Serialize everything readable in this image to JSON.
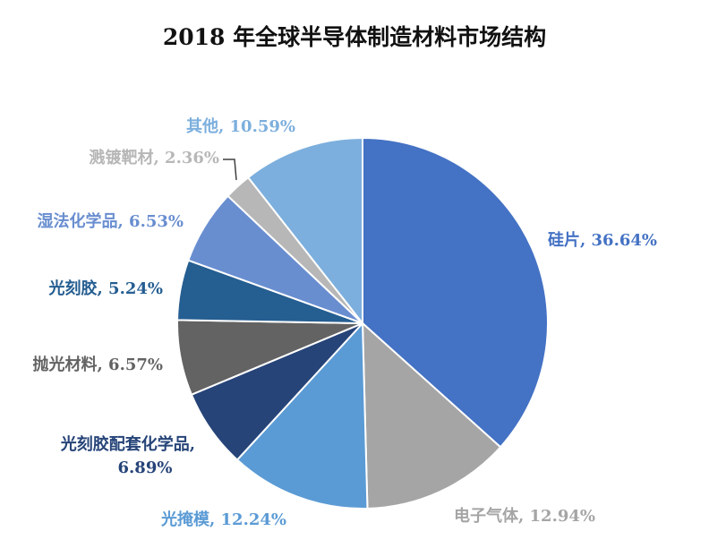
{
  "chart_data": {
    "type": "pie",
    "title": "2018 年全球半导体制造材料市场结构",
    "slices": [
      {
        "name": "硅片",
        "value": 36.64,
        "label": "36.64%",
        "color": "#4472C4",
        "label_color": "#4472C4"
      },
      {
        "name": "电子气体",
        "value": 12.94,
        "label": "12.94%",
        "color": "#A5A5A5",
        "label_color": "#A5A5A5"
      },
      {
        "name": "光掩模",
        "value": 12.24,
        "label": "12.24%",
        "color": "#5B9BD5",
        "label_color": "#5B9BD5"
      },
      {
        "name": "光刻胶配套化学品",
        "value": 6.89,
        "label": "6.89%",
        "color": "#264478",
        "label_color": "#264478"
      },
      {
        "name": "抛光材料",
        "value": 6.57,
        "label": "6.57%",
        "color": "#636363",
        "label_color": "#636363"
      },
      {
        "name": "光刻胶",
        "value": 5.24,
        "label": "5.24%",
        "color": "#255E91",
        "label_color": "#255E91"
      },
      {
        "name": "湿法化学品",
        "value": 6.53,
        "label": "6.53%",
        "color": "#698ED0",
        "label_color": "#698ED0"
      },
      {
        "name": "溅镀靶材",
        "value": 2.36,
        "label": "2.36%",
        "color": "#B7B7B7",
        "label_color": "#B7B7B7"
      },
      {
        "name": "其他",
        "value": 10.59,
        "label": "10.59%",
        "color": "#7CAFDD",
        "label_color": "#7CAFDD"
      }
    ]
  }
}
